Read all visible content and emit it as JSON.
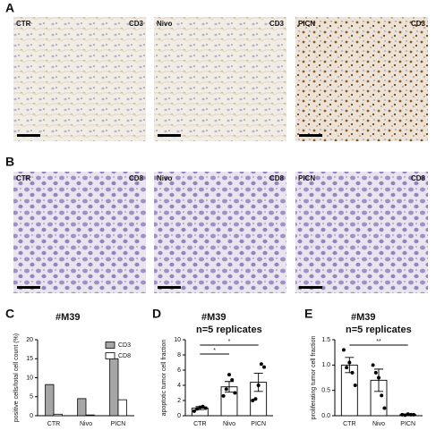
{
  "panel_labels": [
    "A",
    "B",
    "C",
    "D",
    "E"
  ],
  "micrographs": [
    [
      {
        "group": "CTR",
        "stain": "CD3"
      },
      {
        "group": "Nivo",
        "stain": "CD3"
      },
      {
        "group": "PICN",
        "stain": "CD3"
      }
    ],
    [
      {
        "group": "CTR",
        "stain": "CD8"
      },
      {
        "group": "Nivo",
        "stain": "CD8"
      },
      {
        "group": "PICN",
        "stain": "CD8"
      }
    ]
  ],
  "chart_data": [
    {
      "type": "bar",
      "title": "#M39",
      "ylabel": "positive cells/total cell count (%)",
      "categories": [
        "CTR",
        "Nivo",
        "PICN"
      ],
      "series": [
        {
          "name": "CD3",
          "color": "#a6a6a6",
          "values": [
            8.2,
            4.5,
            15
          ]
        },
        {
          "name": "CD8",
          "color": "#ffffff",
          "values": [
            0.4,
            0.2,
            4.2
          ]
        }
      ],
      "ylim": [
        0,
        20
      ],
      "yticks": [
        0,
        5,
        10,
        15,
        20
      ],
      "legend": "upper-right"
    },
    {
      "type": "bar",
      "title": "#M39",
      "subtitle": "n=5 replicates",
      "ylabel": "apoptotic tumor cell fraction",
      "categories": [
        "CTR",
        "Nivo",
        "PICN"
      ],
      "color": "#ffffff",
      "values": [
        1.0,
        3.8,
        4.4
      ],
      "errors": [
        0.2,
        0.7,
        1.2
      ],
      "points": [
        [
          0.6,
          0.9,
          1.1,
          1.2,
          1.0
        ],
        [
          2.6,
          3.5,
          5.4,
          4.7,
          3.0
        ],
        [
          2.0,
          2.2,
          4.0,
          6.8,
          6.4
        ]
      ],
      "ylim": [
        0,
        10
      ],
      "yticks": [
        0,
        2,
        4,
        6,
        8,
        10
      ],
      "annotations": [
        {
          "text": "*",
          "between": [
            "CTR",
            "Nivo"
          ]
        },
        {
          "text": "*",
          "between": [
            "CTR",
            "PICN"
          ]
        }
      ]
    },
    {
      "type": "bar",
      "title": "#M39",
      "subtitle": "n=5 replicates",
      "ylabel": "proliferating tumor cell fraction",
      "categories": [
        "CTR",
        "Nivo",
        "PICN"
      ],
      "color": "#ffffff",
      "values": [
        1.0,
        0.7,
        0.02
      ],
      "errors": [
        0.15,
        0.22,
        0.01
      ],
      "points": [
        [
          1.3,
          0.95,
          1.05,
          0.85,
          0.6
        ],
        [
          1.0,
          0.85,
          0.75,
          0.4,
          0.15
        ],
        [
          0.02,
          0.01,
          0.03,
          0.02,
          0.02
        ]
      ],
      "ylim": [
        0,
        1.5
      ],
      "yticks": [
        {
          "value": 0,
          "label": "0.0"
        },
        {
          "value": 0.5,
          "label": "0.5"
        },
        {
          "value": 1,
          "label": "1.0"
        },
        {
          "value": 1.5,
          "label": "1.5"
        }
      ],
      "annotations": [
        {
          "text": "**",
          "between": [
            "CTR",
            "PICN"
          ]
        }
      ]
    }
  ]
}
